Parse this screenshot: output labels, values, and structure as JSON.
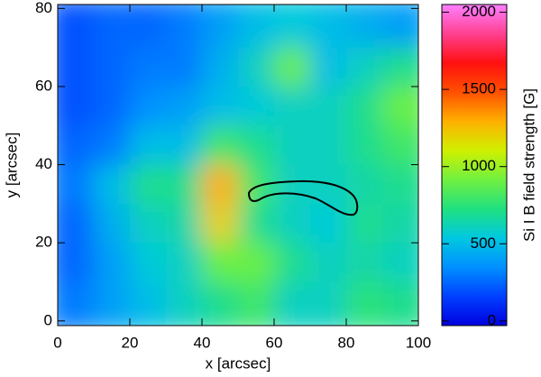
{
  "chart_data": {
    "type": "heatmap",
    "xlabel": "x [arcsec]",
    "ylabel": "y [arcsec]",
    "colorbar_label": "Si I B field strength [G]",
    "xlim": [
      0,
      100
    ],
    "ylim": [
      -1.2,
      81
    ],
    "xticks": [
      0,
      20,
      40,
      60,
      80,
      100
    ],
    "yticks": [
      0,
      20,
      40,
      60,
      80
    ],
    "x_edges": [
      0,
      10,
      20,
      30,
      40,
      50,
      60,
      70,
      80,
      90,
      100
    ],
    "y_edges": [
      80,
      70,
      60,
      50,
      40,
      30,
      20,
      10,
      0
    ],
    "z": [
      [
        200,
        250,
        250,
        300,
        400,
        500,
        550,
        500,
        450,
        400
      ],
      [
        200,
        250,
        300,
        300,
        450,
        600,
        900,
        500,
        600,
        700
      ],
      [
        200,
        250,
        350,
        400,
        500,
        550,
        600,
        600,
        700,
        900
      ],
      [
        250,
        300,
        500,
        500,
        800,
        700,
        600,
        600,
        700,
        800
      ],
      [
        300,
        500,
        700,
        700,
        1300,
        800,
        600,
        600,
        650,
        700
      ],
      [
        250,
        450,
        600,
        650,
        1200,
        700,
        600,
        550,
        700,
        650
      ],
      [
        250,
        400,
        550,
        600,
        900,
        900,
        700,
        600,
        650,
        600
      ],
      [
        300,
        400,
        500,
        600,
        700,
        800,
        600,
        600,
        750,
        700
      ]
    ],
    "clim": [
      -30,
      2050
    ],
    "cticks": [
      0,
      500,
      1000,
      1500,
      2000
    ],
    "colormap": [
      "#0000e0",
      "#0040ff",
      "#0090ff",
      "#00c8e0",
      "#20e080",
      "#70f040",
      "#d0f000",
      "#ffb000",
      "#ff5000",
      "#ff1010",
      "#ff4090",
      "#ff80ff"
    ],
    "contour_color": "#000000"
  }
}
